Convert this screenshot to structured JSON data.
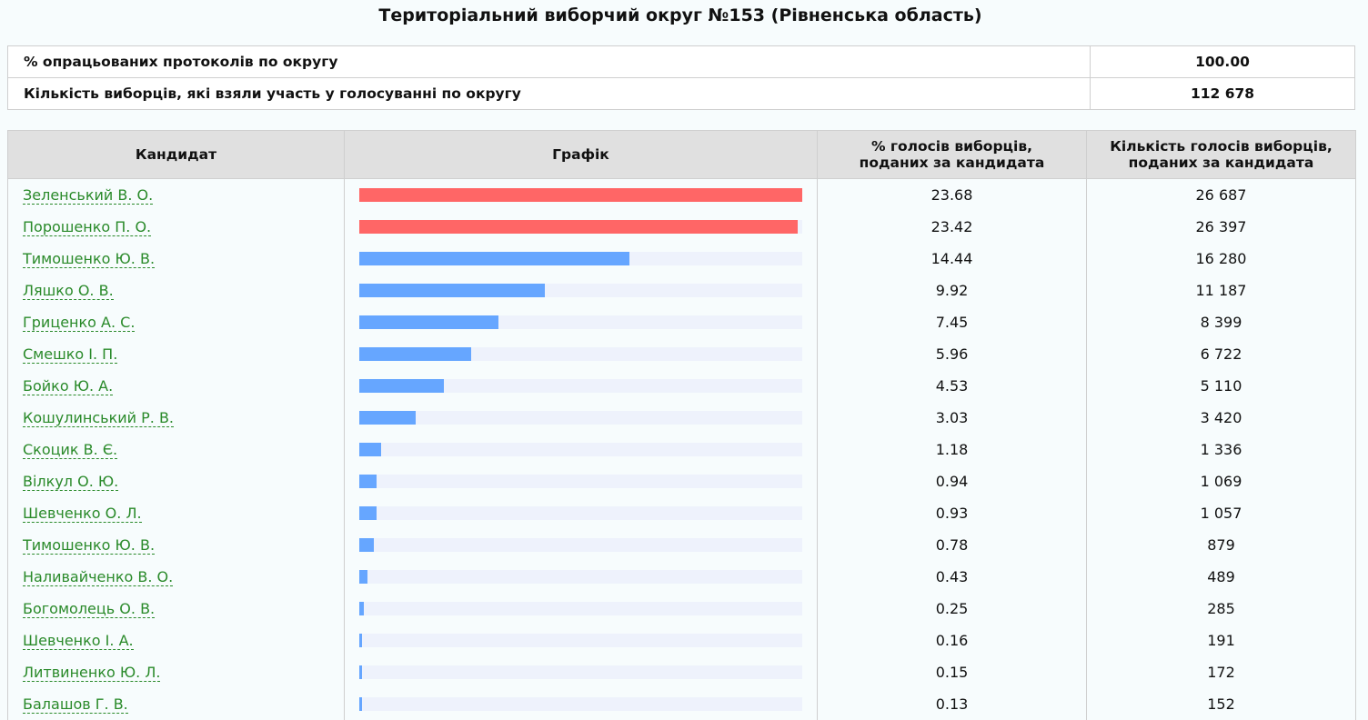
{
  "title": "Територіальний виборчий округ №153 (Рівненська область)",
  "summary": [
    {
      "label": "% опрацьованих протоколів по округу",
      "value": "100.00"
    },
    {
      "label": "Кількість виборців, які взяли участь у голосуванні по округу",
      "value": "112 678"
    }
  ],
  "table": {
    "headers": {
      "candidate": "Кандидат",
      "chart": "Графік",
      "percent_line1": "% голосів виборців,",
      "percent_line2": "поданих за кандидата",
      "votes_line1": "Кількість голосів виборців,",
      "votes_line2": "поданих за кандидата"
    },
    "colors": {
      "leader": "#ff6666",
      "other": "#66a6ff",
      "track": "#eef2fc"
    },
    "scale_max_percent": 23.68,
    "rows": [
      {
        "name": "Зеленський В. О.",
        "percent": "23.68",
        "votes": "26 687",
        "leader": true
      },
      {
        "name": "Порошенко П. О.",
        "percent": "23.42",
        "votes": "26 397",
        "leader": true
      },
      {
        "name": "Тимошенко Ю. В.",
        "percent": "14.44",
        "votes": "16 280",
        "leader": false
      },
      {
        "name": "Ляшко О. В.",
        "percent": "9.92",
        "votes": "11 187",
        "leader": false
      },
      {
        "name": "Гриценко А. С.",
        "percent": "7.45",
        "votes": "8 399",
        "leader": false
      },
      {
        "name": "Смешко І. П.",
        "percent": "5.96",
        "votes": "6 722",
        "leader": false
      },
      {
        "name": "Бойко Ю. А.",
        "percent": "4.53",
        "votes": "5 110",
        "leader": false
      },
      {
        "name": "Кошулинський Р. В.",
        "percent": "3.03",
        "votes": "3 420",
        "leader": false
      },
      {
        "name": "Скоцик В. Є.",
        "percent": "1.18",
        "votes": "1 336",
        "leader": false
      },
      {
        "name": "Вілкул О. Ю.",
        "percent": "0.94",
        "votes": "1 069",
        "leader": false
      },
      {
        "name": "Шевченко О. Л.",
        "percent": "0.93",
        "votes": "1 057",
        "leader": false
      },
      {
        "name": "Тимошенко Ю. В.",
        "percent": "0.78",
        "votes": "879",
        "leader": false
      },
      {
        "name": "Наливайченко В. О.",
        "percent": "0.43",
        "votes": "489",
        "leader": false
      },
      {
        "name": "Богомолець О. В.",
        "percent": "0.25",
        "votes": "285",
        "leader": false
      },
      {
        "name": "Шевченко І. А.",
        "percent": "0.16",
        "votes": "191",
        "leader": false
      },
      {
        "name": "Литвиненко Ю. Л.",
        "percent": "0.15",
        "votes": "172",
        "leader": false
      },
      {
        "name": "Балашов Г. В.",
        "percent": "0.13",
        "votes": "152",
        "leader": false
      }
    ]
  }
}
